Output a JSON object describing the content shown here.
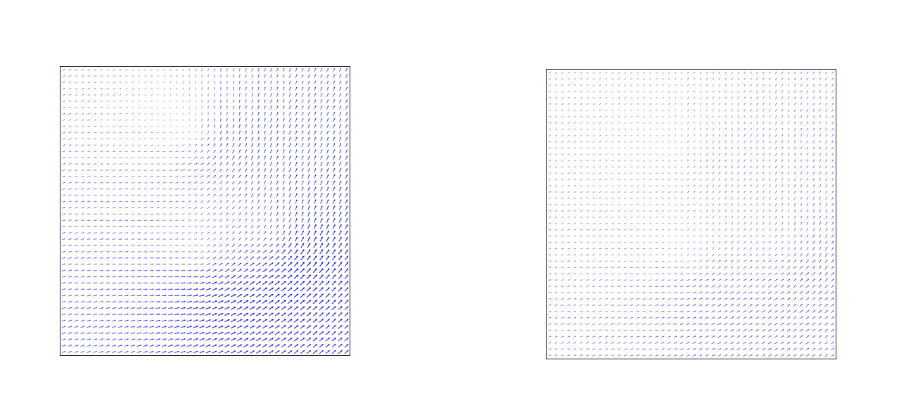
{
  "figure": {
    "background": "#ffffff",
    "arrow_color": "#0000ff",
    "frame_color": "#222222"
  },
  "chart_data": [
    {
      "type": "quiver",
      "title": "",
      "xlabel": "",
      "ylabel": "",
      "ticks": "none",
      "grid": false,
      "legend": "none",
      "xlim": [
        0,
        1
      ],
      "ylim": [
        0,
        1
      ],
      "grid_points": 46,
      "color": "#0000ff",
      "background_flow": [
        0.7,
        0.6
      ],
      "background_strength": 0.5,
      "vortices": [
        {
          "x": 0.48,
          "y": 0.75,
          "strength": 1.0,
          "direction": "counterclockwise"
        },
        {
          "x": 0.5,
          "y": 0.3,
          "strength": 1.0,
          "direction": "counterclockwise"
        },
        {
          "x": 0.77,
          "y": 0.38,
          "strength": 0.9,
          "direction": "counterclockwise"
        }
      ]
    },
    {
      "type": "quiver",
      "title": "",
      "xlabel": "",
      "ylabel": "",
      "ticks": "none",
      "grid": false,
      "legend": "none",
      "xlim": [
        0,
        1
      ],
      "ylim": [
        0,
        1
      ],
      "grid_points": 46,
      "color": "#0000ff",
      "background_flow": [
        0.7,
        0.6
      ],
      "background_strength": 0.35,
      "vortices": [
        {
          "x": 0.49,
          "y": 0.7,
          "strength": 0.35,
          "direction": "counterclockwise"
        },
        {
          "x": 0.51,
          "y": 0.31,
          "strength": 0.55,
          "direction": "counterclockwise"
        },
        {
          "x": 0.85,
          "y": 0.35,
          "strength": 0.45,
          "direction": "counterclockwise"
        }
      ]
    }
  ]
}
